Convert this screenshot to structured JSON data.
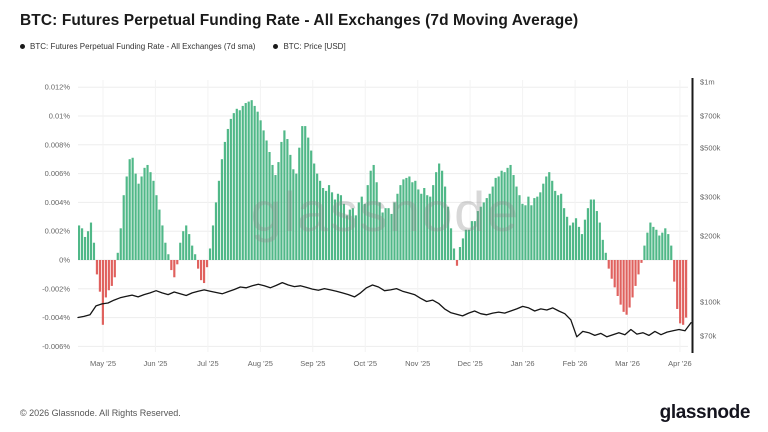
{
  "header": {
    "title": "BTC: Futures Perpetual Funding Rate - All Exchanges (7d Moving Average)"
  },
  "legend": {
    "items": [
      {
        "label": "BTC: Futures Perpetual Funding Rate - All Exchanges (7d sma)",
        "dot_color": "#1a1a1a"
      },
      {
        "label": "BTC: Price [USD]",
        "dot_color": "#1a1a1a"
      }
    ]
  },
  "watermark": "glassnode",
  "footer": {
    "copyright": "© 2026 Glassnode. All Rights Reserved.",
    "logo": "glassnode"
  },
  "colors": {
    "positive_bar": "#50b888",
    "negative_bar": "#e0615e",
    "price_line": "#151515",
    "grid": "#ededed",
    "month_grid": "#f3f3f3",
    "axis_line": "#1a1a1a",
    "tick_text": "#666666",
    "watermark": "#8a8a8a"
  },
  "chart_data": {
    "type": "bar",
    "title": "BTC: Futures Perpetual Funding Rate - All Exchanges (7d Moving Average)",
    "legend_position": "top-left",
    "grid": true,
    "left_axis": {
      "unit": "%",
      "range": [
        -0.006,
        0.012
      ],
      "ticks": [
        {
          "label": "0.012%",
          "value": 0.012
        },
        {
          "label": "0.01%",
          "value": 0.01
        },
        {
          "label": "0.008%",
          "value": 0.008
        },
        {
          "label": "0.006%",
          "value": 0.006
        },
        {
          "label": "0.004%",
          "value": 0.004
        },
        {
          "label": "0.002%",
          "value": 0.002
        },
        {
          "label": "0%",
          "value": 0
        },
        {
          "label": "-0.002%",
          "value": -0.002
        },
        {
          "label": "-0.004%",
          "value": -0.004
        },
        {
          "label": "-0.006%",
          "value": -0.006
        }
      ]
    },
    "right_axis": {
      "unit": "USD",
      "scale": "log",
      "ticks": [
        {
          "label": "$1m",
          "value_k": 1000
        },
        {
          "label": "$700k",
          "value_k": 700
        },
        {
          "label": "$500k",
          "value_k": 500
        },
        {
          "label": "$300k",
          "value_k": 300
        },
        {
          "label": "$200k",
          "value_k": 200
        },
        {
          "label": "$100k",
          "value_k": 100
        },
        {
          "label": "$70k",
          "value_k": 70
        }
      ]
    },
    "x_axis": {
      "months": [
        "May '25",
        "Jun '25",
        "Jul '25",
        "Aug '25",
        "Sep '25",
        "Oct '25",
        "Nov '25",
        "Dec '25",
        "Jan '26",
        "Feb '26",
        "Mar '26",
        "Apr '26"
      ]
    },
    "series": [
      {
        "name": "BTC: Futures Perpetual Funding Rate - All Exchanges (7d sma)",
        "type": "bar",
        "unit": "percent",
        "values": [
          0.0024,
          0.0022,
          0.0016,
          0.002,
          0.0026,
          0.0012,
          -0.001,
          -0.0022,
          -0.0045,
          -0.0026,
          -0.0021,
          -0.0018,
          -0.0012,
          0.0005,
          0.0022,
          0.0045,
          0.0058,
          0.007,
          0.0071,
          0.006,
          0.0053,
          0.0058,
          0.0064,
          0.0066,
          0.0061,
          0.0055,
          0.0045,
          0.0035,
          0.0024,
          0.0012,
          0.0004,
          -0.0007,
          -0.0012,
          -0.0003,
          0.0012,
          0.002,
          0.0024,
          0.0018,
          0.001,
          0.0004,
          -0.0006,
          -0.0014,
          -0.0016,
          -0.0005,
          0.0008,
          0.0024,
          0.004,
          0.0055,
          0.007,
          0.0082,
          0.0091,
          0.0098,
          0.0102,
          0.0105,
          0.0104,
          0.0107,
          0.0109,
          0.011,
          0.0111,
          0.0107,
          0.0103,
          0.0097,
          0.009,
          0.0083,
          0.0075,
          0.0066,
          0.0059,
          0.0068,
          0.0082,
          0.009,
          0.0084,
          0.0073,
          0.0063,
          0.006,
          0.0078,
          0.0093,
          0.0093,
          0.0085,
          0.0076,
          0.0067,
          0.006,
          0.0055,
          0.005,
          0.0048,
          0.0052,
          0.0047,
          0.0042,
          0.0046,
          0.0045,
          0.0039,
          0.0031,
          0.0035,
          0.0036,
          0.0031,
          0.004,
          0.0044,
          0.0039,
          0.0052,
          0.0062,
          0.0066,
          0.0054,
          0.004,
          0.0033,
          0.0036,
          0.0036,
          0.0032,
          0.004,
          0.0046,
          0.0052,
          0.0056,
          0.0057,
          0.0058,
          0.0054,
          0.0055,
          0.0049,
          0.0046,
          0.005,
          0.0045,
          0.0044,
          0.0052,
          0.0061,
          0.0067,
          0.0062,
          0.0051,
          0.0037,
          0.0022,
          0.0008,
          -0.0004,
          0.0009,
          0.0015,
          0.0021,
          0.0021,
          0.0027,
          0.0027,
          0.0034,
          0.0037,
          0.004,
          0.0043,
          0.0046,
          0.0051,
          0.0057,
          0.0058,
          0.0062,
          0.0061,
          0.0064,
          0.0066,
          0.0059,
          0.0051,
          0.0045,
          0.0039,
          0.0038,
          0.0044,
          0.0038,
          0.0043,
          0.0044,
          0.0047,
          0.0053,
          0.0058,
          0.0061,
          0.0055,
          0.0048,
          0.0045,
          0.0046,
          0.0036,
          0.003,
          0.0024,
          0.0026,
          0.0029,
          0.0023,
          0.0018,
          0.0028,
          0.0036,
          0.0042,
          0.0042,
          0.0034,
          0.0026,
          0.0014,
          0.0005,
          -0.0006,
          -0.0013,
          -0.0019,
          -0.0025,
          -0.0031,
          -0.0036,
          -0.0038,
          -0.0033,
          -0.0026,
          -0.0018,
          -0.001,
          -0.0002,
          0.001,
          0.0019,
          0.0026,
          0.0023,
          0.0021,
          0.0017,
          0.0019,
          0.0022,
          0.0018,
          0.001,
          -0.0015,
          -0.0034,
          -0.0044,
          -0.0045,
          -0.004
        ]
      },
      {
        "name": "BTC: Price [USD]",
        "type": "line",
        "unit": "USD_thousands",
        "values": [
          85,
          86,
          87.5,
          96,
          98,
          99,
          102,
          104.5,
          106,
          107.5,
          105.5,
          108,
          110,
          112.5,
          110,
          108,
          111,
          109,
          107,
          110,
          112,
          113.5,
          112,
          110.5,
          109,
          111.5,
          114,
          117,
          116,
          118.5,
          120.5,
          118.5,
          116,
          119,
          122.5,
          119.5,
          117.5,
          118.5,
          116.5,
          114.5,
          113,
          115,
          113.5,
          112,
          110,
          108,
          105.5,
          110,
          116,
          119.5,
          117,
          112.5,
          113.5,
          115,
          112,
          110,
          108,
          104,
          100.5,
          102,
          98.5,
          93,
          89.5,
          88,
          86.5,
          89,
          91,
          88.5,
          87.5,
          89,
          90,
          89,
          91,
          93,
          95.5,
          94,
          91,
          93,
          92,
          94,
          91,
          88.5,
          83,
          69.5,
          73.5,
          72.5,
          70.5,
          72,
          69.5,
          71,
          72.5,
          71,
          75,
          71.5,
          72.5,
          70.5,
          73.5,
          71,
          73,
          74,
          75,
          74,
          80.5
        ]
      }
    ]
  }
}
